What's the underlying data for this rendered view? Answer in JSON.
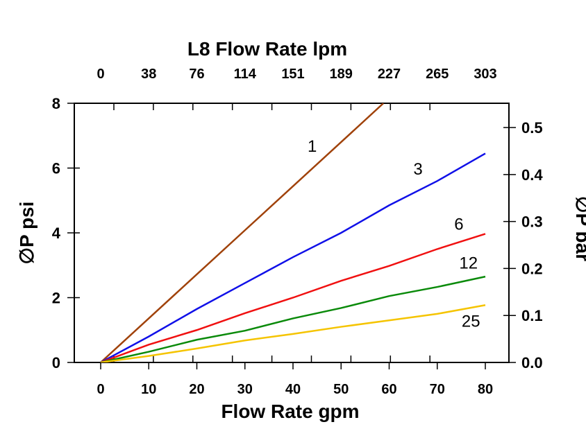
{
  "chart_data": {
    "type": "line",
    "title": "L8 Flow Rate lpm",
    "xlabel": "Flow Rate gpm",
    "ylabel": "∅P psi",
    "y2label": "∅P bar",
    "xlim": [
      0,
      80
    ],
    "ylim": [
      0,
      8
    ],
    "y2lim": [
      0,
      0.5517
    ],
    "grid": false,
    "x_ticks": [
      0,
      10,
      20,
      30,
      40,
      50,
      60,
      70,
      80
    ],
    "y_ticks": [
      0,
      2,
      4,
      6,
      8
    ],
    "y2_ticks": [
      "0.0",
      "0.1",
      "0.2",
      "0.3",
      "0.4",
      "0.5"
    ],
    "top_ticks": [
      "0",
      "38",
      "76",
      "114",
      "151",
      "189",
      "227",
      "265",
      "303"
    ],
    "series": [
      {
        "name": "1",
        "color": "#a0420a",
        "x": [
          0,
          10,
          20,
          30,
          40,
          50,
          58.8
        ],
        "y": [
          0,
          1.36,
          2.72,
          4.08,
          5.44,
          6.8,
          8.0
        ]
      },
      {
        "name": "3",
        "color": "#1010e8",
        "x": [
          0,
          10,
          20,
          30,
          40,
          50,
          60,
          70,
          80
        ],
        "y": [
          0,
          0.8,
          1.65,
          2.45,
          3.25,
          4.0,
          4.85,
          5.6,
          6.45
        ]
      },
      {
        "name": "6",
        "color": "#f01010",
        "x": [
          0,
          10,
          20,
          30,
          40,
          50,
          60,
          70,
          80
        ],
        "y": [
          0,
          0.55,
          1.0,
          1.52,
          2.0,
          2.52,
          2.98,
          3.5,
          3.97
        ]
      },
      {
        "name": "12",
        "color": "#0a8a0a",
        "x": [
          0,
          10,
          20,
          30,
          40,
          50,
          60,
          70,
          80
        ],
        "y": [
          0,
          0.33,
          0.7,
          0.98,
          1.36,
          1.68,
          2.05,
          2.33,
          2.65
        ]
      },
      {
        "name": "25",
        "color": "#f5c400",
        "x": [
          0,
          10,
          20,
          30,
          40,
          50,
          60,
          70,
          80
        ],
        "y": [
          0,
          0.2,
          0.43,
          0.68,
          0.88,
          1.1,
          1.3,
          1.5,
          1.77
        ]
      }
    ],
    "series_labels": [
      {
        "text": "1",
        "x": 44,
        "y": 6.5
      },
      {
        "text": "3",
        "x": 66,
        "y": 5.8
      },
      {
        "text": "6",
        "x": 74.5,
        "y": 4.1
      },
      {
        "text": "12",
        "x": 76.5,
        "y": 2.9
      },
      {
        "text": "25",
        "x": 77,
        "y": 1.1
      }
    ]
  }
}
